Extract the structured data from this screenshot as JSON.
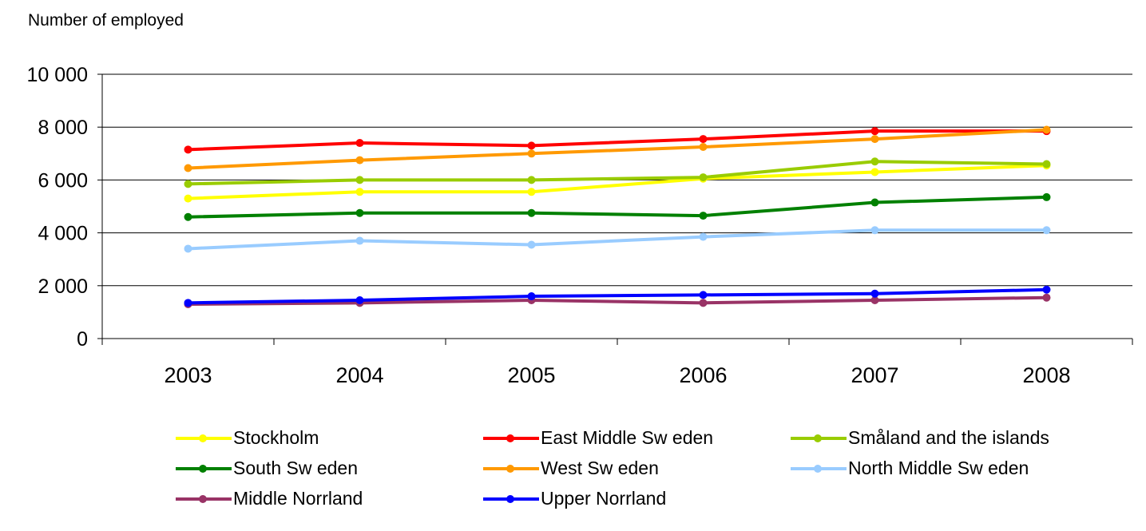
{
  "chart_data": {
    "type": "line",
    "ylabel": "Number of employed",
    "xlabel": "",
    "categories": [
      "2003",
      "2004",
      "2005",
      "2006",
      "2007",
      "2008"
    ],
    "ylim": [
      0,
      10000
    ],
    "yticks": [
      0,
      2000,
      4000,
      6000,
      8000,
      10000
    ],
    "ytick_labels": [
      "0",
      "2 000",
      "4 000",
      "6 000",
      "8 000",
      "10 000"
    ],
    "grid": true,
    "legend_position": "bottom",
    "series": [
      {
        "name": "Stockholm",
        "color": "#ffff00",
        "values": [
          5300,
          5550,
          5550,
          6050,
          6300,
          6550
        ]
      },
      {
        "name": "East Middle Sw eden",
        "color": "#ff0000",
        "values": [
          7150,
          7400,
          7300,
          7550,
          7850,
          7850
        ]
      },
      {
        "name": "Småland and the islands",
        "color": "#99cc00",
        "values": [
          5850,
          6000,
          6000,
          6100,
          6700,
          6600
        ]
      },
      {
        "name": "South Sw eden",
        "color": "#008000",
        "values": [
          4600,
          4750,
          4750,
          4650,
          5150,
          5350
        ]
      },
      {
        "name": "West Sw eden",
        "color": "#ff9900",
        "values": [
          6450,
          6750,
          7000,
          7250,
          7550,
          7900
        ]
      },
      {
        "name": "North Middle Sw eden",
        "color": "#99ccff",
        "values": [
          3400,
          3700,
          3550,
          3850,
          4100,
          4100
        ]
      },
      {
        "name": "Middle Norrland",
        "color": "#993366",
        "values": [
          1300,
          1350,
          1450,
          1350,
          1450,
          1550
        ]
      },
      {
        "name": "Upper Norrland",
        "color": "#0000ff",
        "values": [
          1350,
          1450,
          1600,
          1650,
          1700,
          1850
        ]
      }
    ]
  }
}
